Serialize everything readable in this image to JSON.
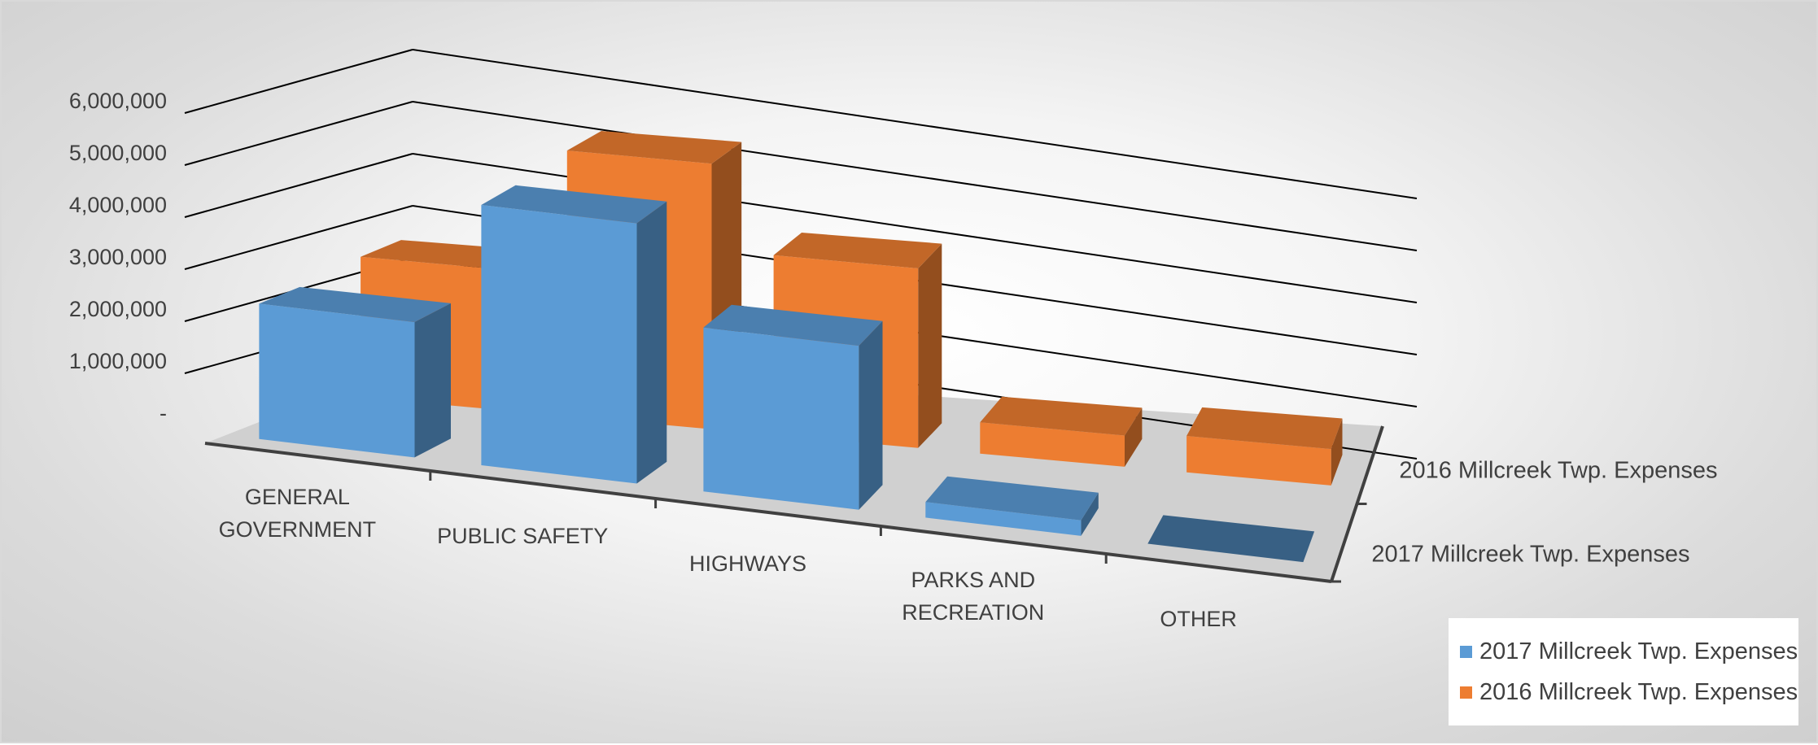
{
  "chart_data": {
    "type": "bar",
    "style": "3d-column",
    "categories": [
      "GENERAL GOVERNMENT",
      "PUBLIC SAFETY",
      "HIGHWAYS",
      "PARKS AND RECREATION",
      "OTHER"
    ],
    "series": [
      {
        "name": "2017 Millcreek Twp. Expenses",
        "color": "#5b9bd5",
        "values": [
          2600000,
          5000000,
          3150000,
          300000,
          0
        ]
      },
      {
        "name": "2016 Millcreek Twp. Expenses",
        "color": "#ed7d31",
        "values": [
          2700000,
          5100000,
          3450000,
          600000,
          700000
        ]
      }
    ],
    "y_ticks": [
      "-",
      "1,000,000",
      "2,000,000",
      "3,000,000",
      "4,000,000",
      "5,000,000",
      "6,000,000"
    ],
    "ylim": [
      0,
      6000000
    ],
    "grid": true,
    "legend_position": "bottom-right"
  }
}
